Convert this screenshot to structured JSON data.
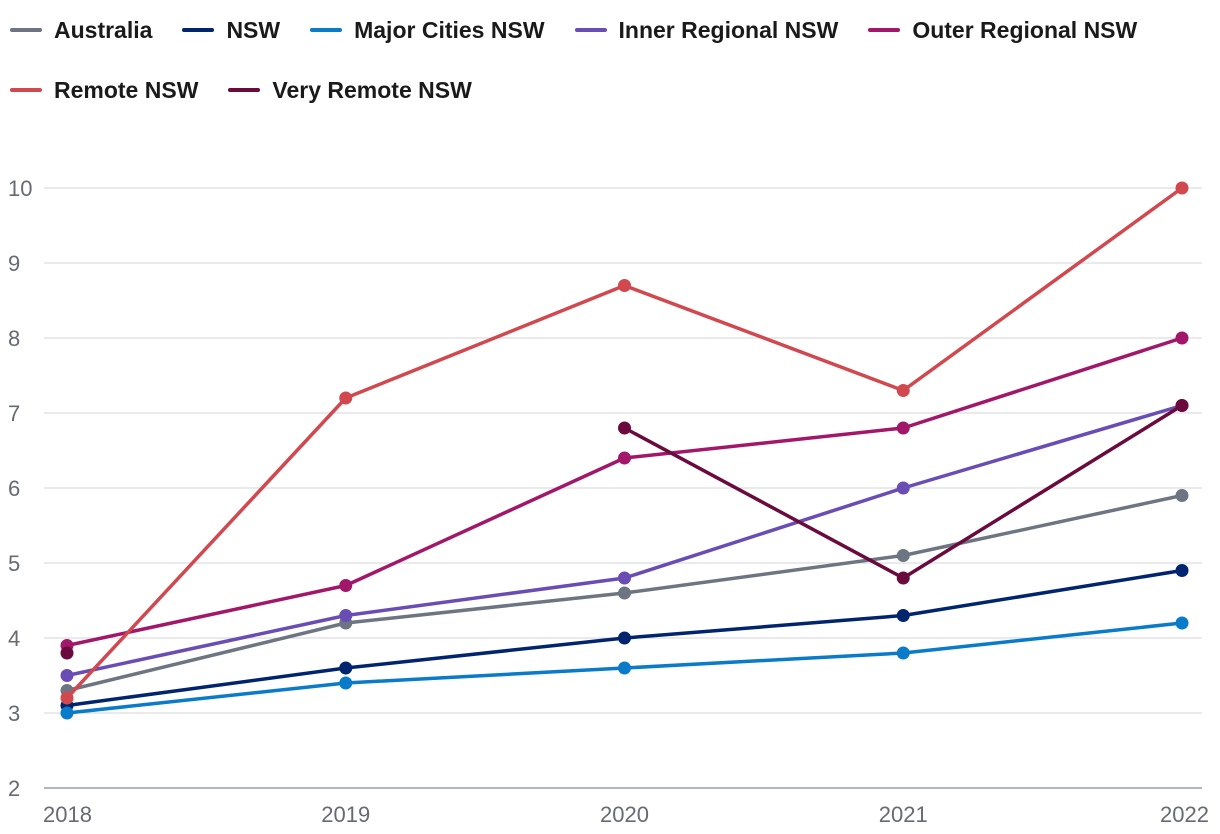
{
  "chart_data": {
    "type": "line",
    "title": "",
    "xlabel": "",
    "ylabel": "",
    "x": [
      "2018",
      "2019",
      "2020",
      "2021",
      "2022"
    ],
    "ylim": [
      2,
      10
    ],
    "yticks": [
      "2",
      "3",
      "4",
      "5",
      "6",
      "7",
      "8",
      "9",
      "10"
    ],
    "grid": "horizontal",
    "legend_position": "top",
    "series": [
      {
        "name": "Australia",
        "color": "#6e7582",
        "values": [
          3.3,
          4.2,
          4.6,
          5.1,
          5.9
        ]
      },
      {
        "name": "NSW",
        "color": "#00256e",
        "values": [
          3.1,
          3.6,
          4.0,
          4.3,
          4.9
        ]
      },
      {
        "name": "Major Cities NSW",
        "color": "#0a7bc9",
        "values": [
          3.0,
          3.4,
          3.6,
          3.8,
          4.2
        ]
      },
      {
        "name": "Inner Regional NSW",
        "color": "#6a4cb5",
        "values": [
          3.5,
          4.3,
          4.8,
          6.0,
          7.1
        ]
      },
      {
        "name": "Outer Regional NSW",
        "color": "#a3176a",
        "values": [
          3.9,
          4.7,
          6.4,
          6.8,
          8.0
        ]
      },
      {
        "name": "Remote NSW",
        "color": "#d1484f",
        "values": [
          3.2,
          7.2,
          8.7,
          7.3,
          10.0
        ]
      },
      {
        "name": "Very Remote NSW",
        "color": "#6b0a3c",
        "values": [
          3.8,
          null,
          6.8,
          4.8,
          7.1
        ]
      }
    ]
  }
}
